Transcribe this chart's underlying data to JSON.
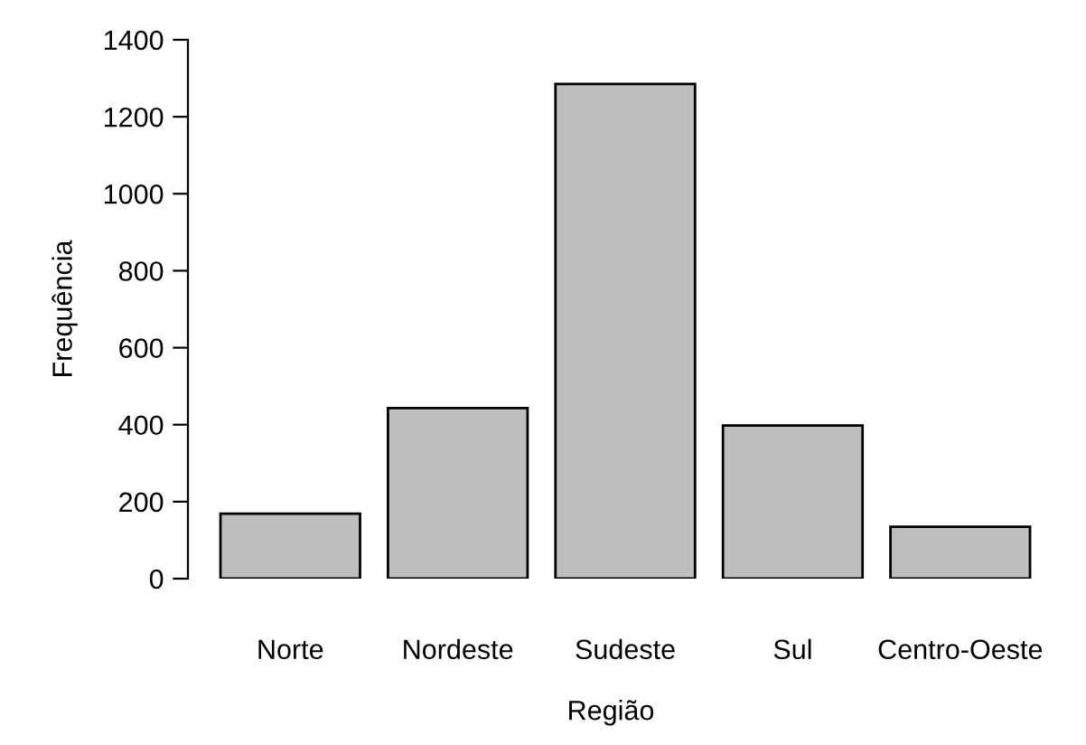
{
  "chart_data": {
    "type": "bar",
    "xlabel": "Região",
    "ylabel": "Frequência",
    "categories": [
      "Norte",
      "Nordeste",
      "Sudeste",
      "Sul",
      "Centro-Oeste"
    ],
    "values": [
      169,
      443,
      1285,
      398,
      135
    ],
    "color": "#bebebe",
    "ylim": [
      0,
      1400
    ],
    "yticks": [
      0,
      200,
      400,
      600,
      800,
      1000,
      1200,
      1400
    ],
    "grid": false,
    "legend": false
  }
}
